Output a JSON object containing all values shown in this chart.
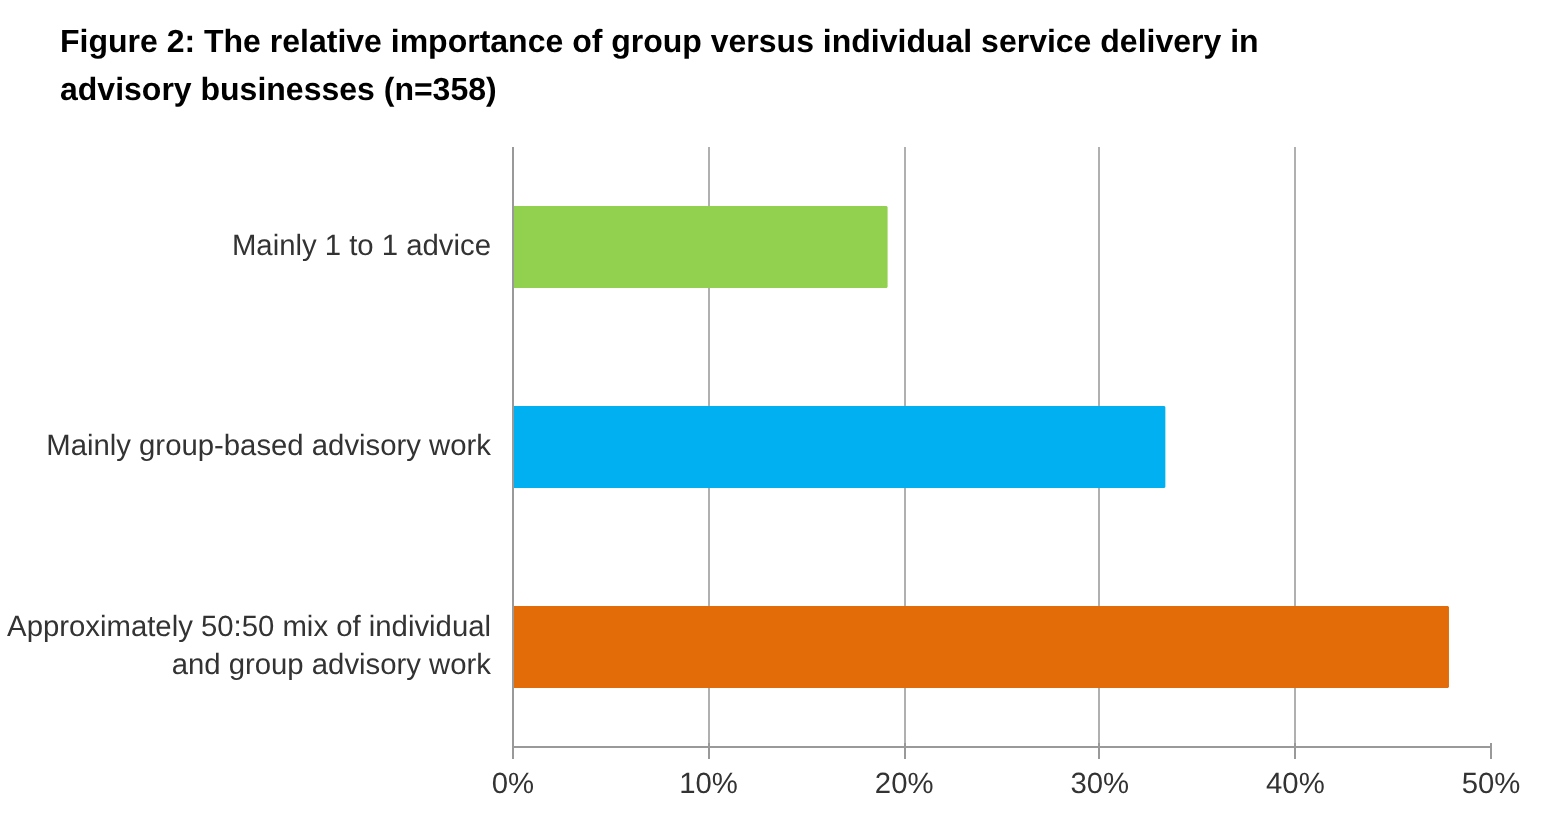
{
  "chart_data": {
    "type": "bar",
    "orientation": "horizontal",
    "title": "Figure 2: The relative importance of group versus individual service delivery in advisory businesses (n=358)",
    "categories": [
      "Mainly 1 to 1 advice",
      "Mainly group-based advisory work",
      "Approximately 50:50 mix of individual and group advisory work"
    ],
    "values": [
      19.1,
      33.3,
      47.8
    ],
    "colors": [
      "#92d050",
      "#00b0f0",
      "#e36c09"
    ],
    "xlim": [
      0,
      50
    ],
    "xticks": [
      {
        "value": 0,
        "label": "0%"
      },
      {
        "value": 10,
        "label": "10%"
      },
      {
        "value": 20,
        "label": "20%"
      },
      {
        "value": 30,
        "label": "30%"
      },
      {
        "value": 40,
        "label": "40%"
      },
      {
        "value": 50,
        "label": "50%"
      }
    ],
    "grid": "x"
  }
}
